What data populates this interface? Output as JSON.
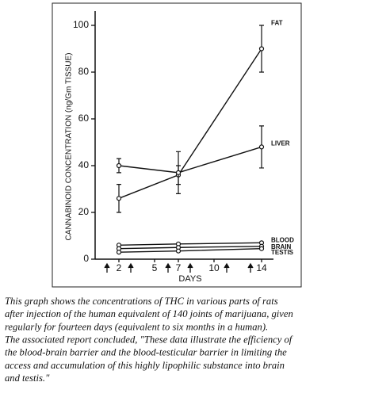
{
  "chart_data": {
    "type": "line",
    "x_label": "DAYS",
    "y_label": "CANNABINOID CONCENTRATION (ng/Gm TISSUE)",
    "xlim": [
      0,
      15
    ],
    "xticks": [
      2,
      5,
      7,
      10,
      14
    ],
    "ylim": [
      0,
      100
    ],
    "yticks": [
      0,
      20,
      40,
      60,
      80,
      100
    ],
    "x": [
      2,
      7,
      14
    ],
    "series": [
      {
        "name": "FAT",
        "color": "#111111",
        "values": [
          26,
          36,
          90
        ],
        "errors": [
          6,
          4,
          10
        ]
      },
      {
        "name": "LIVER",
        "color": "#111111",
        "values": [
          40,
          37,
          48
        ],
        "errors": [
          3,
          9,
          9
        ]
      },
      {
        "name": "BLOOD",
        "color": "#111111",
        "values": [
          6,
          6.5,
          7
        ]
      },
      {
        "name": "BRAIN",
        "color": "#111111",
        "values": [
          4.5,
          5,
          5.5
        ]
      },
      {
        "name": "TESTIS",
        "color": "#111111",
        "values": [
          3,
          3.5,
          4.5
        ]
      }
    ]
  },
  "caption": {
    "lines": [
      "This graph shows the concentrations of THC in various parts of rats",
      "after injection of the human equivalent of 140 joints of marijuana, given",
      "regularly for fourteen days (equivalent to six months in a human).",
      "The associated report concluded, \"These data illustrate the efficiency of",
      "the blood-brain barrier and the blood-testicular barrier in limiting the",
      "access and accumulation of this highly lipophilic substance into brain",
      "and testis.\""
    ]
  }
}
